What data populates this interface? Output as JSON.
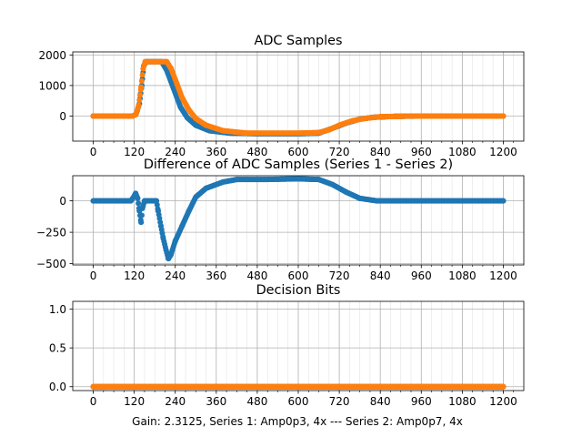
{
  "figure_caption": "Gain: 2.3125, Series 1: Amp0p3, 4x --- Series 2: Amp0p7, 4x",
  "colors": {
    "series1": "#1f77b4",
    "series2": "#ff7f0e",
    "grid": "#b0b0b0"
  },
  "chart_data": [
    {
      "type": "scatter",
      "title": "ADC Samples",
      "xlabel": "",
      "ylabel": "",
      "xlim": [
        -60,
        1260
      ],
      "ylim": [
        -820,
        2100
      ],
      "xticks": [
        0,
        120,
        240,
        360,
        480,
        600,
        720,
        840,
        960,
        1080,
        1200
      ],
      "xtick_labels": [
        "0",
        "120",
        "240",
        "360",
        "480",
        "600",
        "720",
        "840",
        "960",
        "1080",
        "1200"
      ],
      "yticks": [
        0,
        1000,
        2000
      ],
      "ytick_labels": [
        "0",
        "1000",
        "2000"
      ],
      "grid": true,
      "series": [
        {
          "name": "Series 1",
          "points": [
            [
              0,
              0
            ],
            [
              100,
              0
            ],
            [
              115,
              0
            ],
            [
              125,
              50
            ],
            [
              135,
              400
            ],
            [
              142,
              1000
            ],
            [
              148,
              1650
            ],
            [
              155,
              1780
            ],
            [
              200,
              1780
            ],
            [
              215,
              1500
            ],
            [
              235,
              900
            ],
            [
              255,
              300
            ],
            [
              275,
              -50
            ],
            [
              300,
              -300
            ],
            [
              340,
              -480
            ],
            [
              400,
              -560
            ],
            [
              480,
              -580
            ],
            [
              600,
              -580
            ],
            [
              660,
              -560
            ],
            [
              700,
              -400
            ],
            [
              740,
              -230
            ],
            [
              780,
              -100
            ],
            [
              820,
              -40
            ],
            [
              880,
              -10
            ],
            [
              960,
              0
            ],
            [
              1200,
              0
            ]
          ]
        },
        {
          "name": "Series 2",
          "points": [
            [
              0,
              0
            ],
            [
              100,
              0
            ],
            [
              115,
              0
            ],
            [
              125,
              50
            ],
            [
              133,
              350
            ],
            [
              140,
              950
            ],
            [
              146,
              1550
            ],
            [
              152,
              1780
            ],
            [
              215,
              1780
            ],
            [
              228,
              1550
            ],
            [
              245,
              1050
            ],
            [
              260,
              600
            ],
            [
              280,
              200
            ],
            [
              300,
              -80
            ],
            [
              330,
              -300
            ],
            [
              380,
              -480
            ],
            [
              450,
              -560
            ],
            [
              600,
              -560
            ],
            [
              660,
              -540
            ],
            [
              690,
              -450
            ],
            [
              720,
              -300
            ],
            [
              760,
              -150
            ],
            [
              800,
              -70
            ],
            [
              840,
              -20
            ],
            [
              900,
              -10
            ],
            [
              920,
              0
            ],
            [
              1200,
              0
            ]
          ]
        }
      ]
    },
    {
      "type": "scatter",
      "title": "Difference of ADC Samples (Series 1 - Series 2)",
      "xlabel": "",
      "ylabel": "",
      "xlim": [
        -60,
        1260
      ],
      "ylim": [
        -510,
        200
      ],
      "xticks": [
        0,
        120,
        240,
        360,
        480,
        600,
        720,
        840,
        960,
        1080,
        1200
      ],
      "xtick_labels": [
        "0",
        "120",
        "240",
        "360",
        "480",
        "600",
        "720",
        "840",
        "960",
        "1080",
        "1200"
      ],
      "yticks": [
        -500,
        -250,
        0
      ],
      "ytick_labels": [
        "−500",
        "−250",
        "0"
      ],
      "grid": true,
      "series": [
        {
          "name": "Series 1 - Series 2",
          "points": [
            [
              0,
              0
            ],
            [
              110,
              0
            ],
            [
              118,
              30
            ],
            [
              124,
              60
            ],
            [
              130,
              20
            ],
            [
              135,
              -80
            ],
            [
              140,
              -170
            ],
            [
              144,
              -60
            ],
            [
              150,
              0
            ],
            [
              185,
              0
            ],
            [
              190,
              -80
            ],
            [
              198,
              -200
            ],
            [
              205,
              -300
            ],
            [
              213,
              -390
            ],
            [
              220,
              -460
            ],
            [
              227,
              -430
            ],
            [
              240,
              -320
            ],
            [
              260,
              -200
            ],
            [
              280,
              -80
            ],
            [
              300,
              30
            ],
            [
              330,
              100
            ],
            [
              380,
              150
            ],
            [
              420,
              170
            ],
            [
              500,
              170
            ],
            [
              600,
              175
            ],
            [
              660,
              170
            ],
            [
              700,
              130
            ],
            [
              740,
              70
            ],
            [
              780,
              20
            ],
            [
              830,
              0
            ],
            [
              1200,
              0
            ]
          ]
        }
      ]
    },
    {
      "type": "scatter",
      "title": "Decision Bits",
      "xlabel": "Gain: 2.3125, Series 1: Amp0p3, 4x --- Series 2: Amp0p7, 4x",
      "ylabel": "",
      "xlim": [
        -60,
        1260
      ],
      "ylim": [
        -0.05,
        1.1
      ],
      "xticks": [
        0,
        120,
        240,
        360,
        480,
        600,
        720,
        840,
        960,
        1080,
        1200
      ],
      "xtick_labels": [
        "0",
        "120",
        "240",
        "360",
        "480",
        "600",
        "720",
        "840",
        "960",
        "1080",
        "1200"
      ],
      "yticks": [
        0.0,
        0.5,
        1.0
      ],
      "ytick_labels": [
        "0.0",
        "0.5",
        "1.0"
      ],
      "grid": true,
      "series": [
        {
          "name": "Series 1",
          "points": [
            [
              0,
              0
            ],
            [
              1200,
              0
            ]
          ]
        },
        {
          "name": "Series 2",
          "points": [
            [
              0,
              0
            ],
            [
              1200,
              0
            ]
          ]
        }
      ]
    }
  ]
}
